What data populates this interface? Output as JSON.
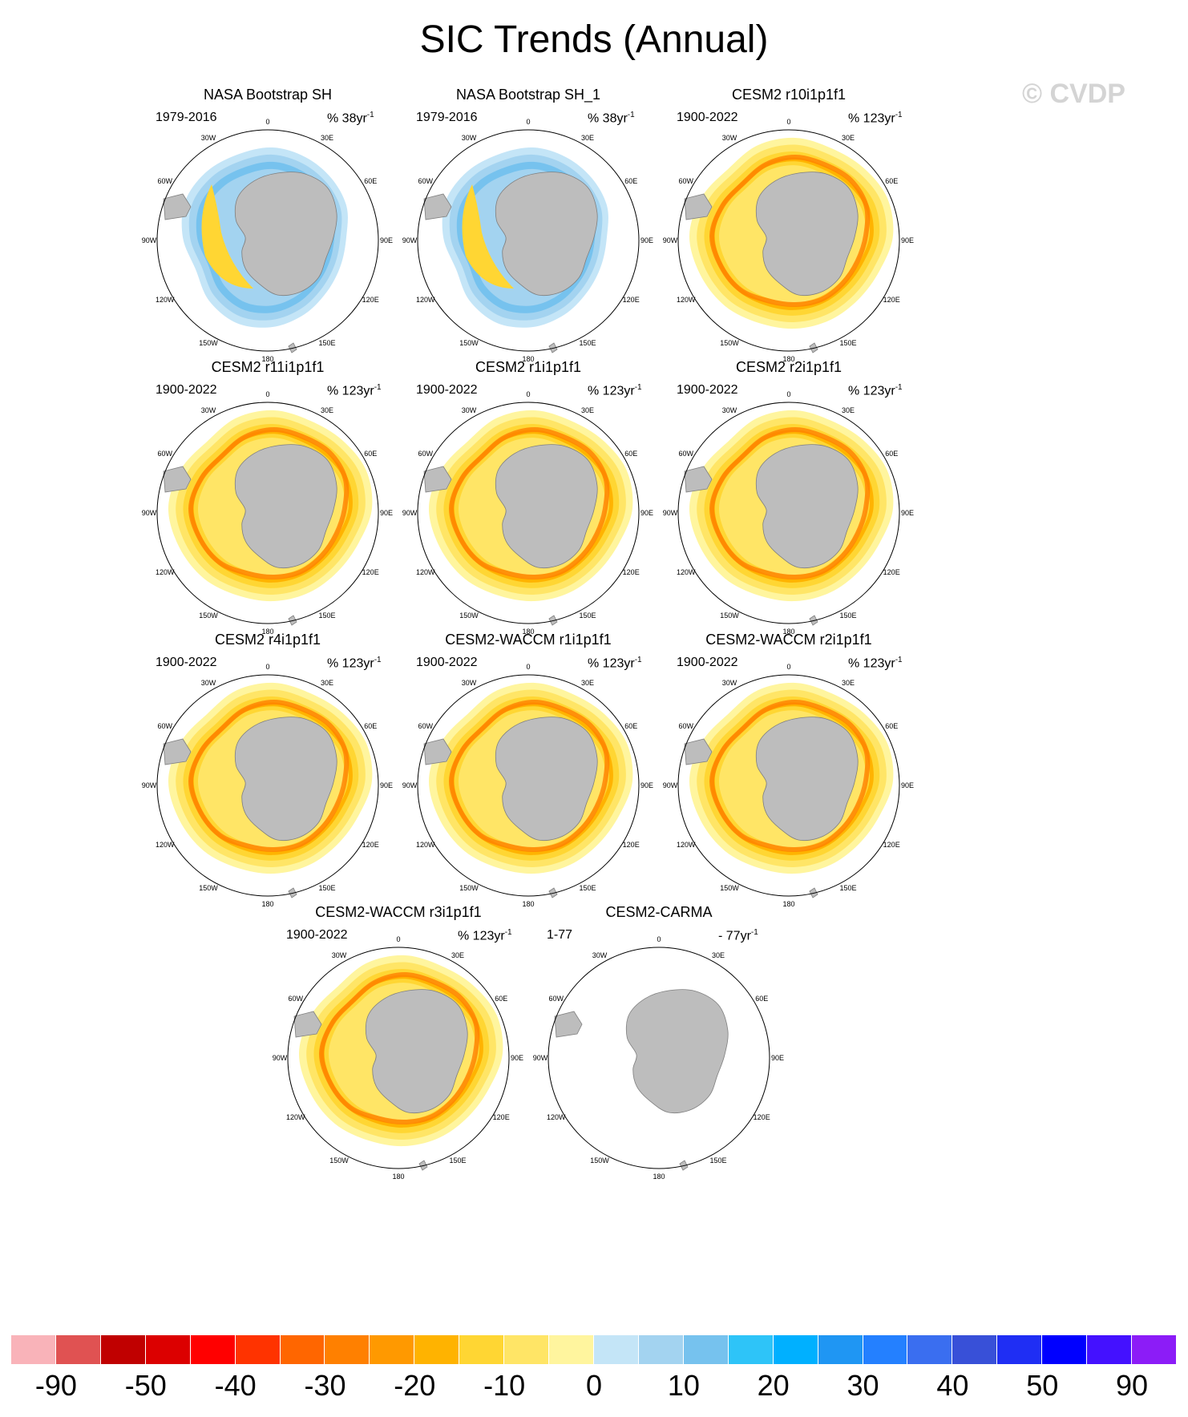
{
  "title": "SIC Trends (Annual)",
  "watermark": "© CVDP",
  "longitude_labels": [
    "0",
    "30E",
    "60E",
    "90E",
    "120E",
    "150E",
    "180",
    "150W",
    "120W",
    "90W",
    "60W",
    "30W"
  ],
  "panels": [
    {
      "title": "NASA Bootstrap SH",
      "period": "1979-2016",
      "units_prefix": "% 38yr",
      "units_exp": "-1",
      "style": "obs"
    },
    {
      "title": "NASA Bootstrap SH_1",
      "period": "1979-2016",
      "units_prefix": "% 38yr",
      "units_exp": "-1",
      "style": "obs"
    },
    {
      "title": "CESM2 r10i1p1f1",
      "period": "1900-2022",
      "units_prefix": "% 123yr",
      "units_exp": "-1",
      "style": "model"
    },
    {
      "title": "CESM2 r11i1p1f1",
      "period": "1900-2022",
      "units_prefix": "% 123yr",
      "units_exp": "-1",
      "style": "model"
    },
    {
      "title": "CESM2 r1i1p1f1",
      "period": "1900-2022",
      "units_prefix": "% 123yr",
      "units_exp": "-1",
      "style": "model"
    },
    {
      "title": "CESM2 r2i1p1f1",
      "period": "1900-2022",
      "units_prefix": "% 123yr",
      "units_exp": "-1",
      "style": "model"
    },
    {
      "title": "CESM2 r4i1p1f1",
      "period": "1900-2022",
      "units_prefix": "% 123yr",
      "units_exp": "-1",
      "style": "model"
    },
    {
      "title": "CESM2-WACCM r1i1p1f1",
      "period": "1900-2022",
      "units_prefix": "% 123yr",
      "units_exp": "-1",
      "style": "model"
    },
    {
      "title": "CESM2-WACCM r2i1p1f1",
      "period": "1900-2022",
      "units_prefix": "% 123yr",
      "units_exp": "-1",
      "style": "model"
    },
    {
      "title": "CESM2-WACCM r3i1p1f1",
      "period": "1900-2022",
      "units_prefix": "% 123yr",
      "units_exp": "-1",
      "style": "model"
    },
    {
      "title": "CESM2-CARMA",
      "period": "1-77",
      "units_prefix": "- 77yr",
      "units_exp": "-1",
      "style": "empty"
    }
  ],
  "colorbar": {
    "colors": [
      "#f9b3b9",
      "#e05252",
      "#c00000",
      "#dc0000",
      "#ff0000",
      "#ff3300",
      "#ff6600",
      "#ff8000",
      "#ff9900",
      "#ffb300",
      "#ffd633",
      "#ffe566",
      "#fff59e",
      "#c4e5f7",
      "#a3d3f0",
      "#76c2ee",
      "#2ec4f8",
      "#00b0ff",
      "#1f96f3",
      "#2480ff",
      "#3a6ef0",
      "#3850d8",
      "#1f2ef4",
      "#0000ff",
      "#4411ff",
      "#8c1cf7"
    ],
    "tick_labels": [
      "-90",
      "-50",
      "-40",
      "-30",
      "-20",
      "-10",
      "0",
      "10",
      "20",
      "30",
      "40",
      "50",
      "90"
    ]
  }
}
